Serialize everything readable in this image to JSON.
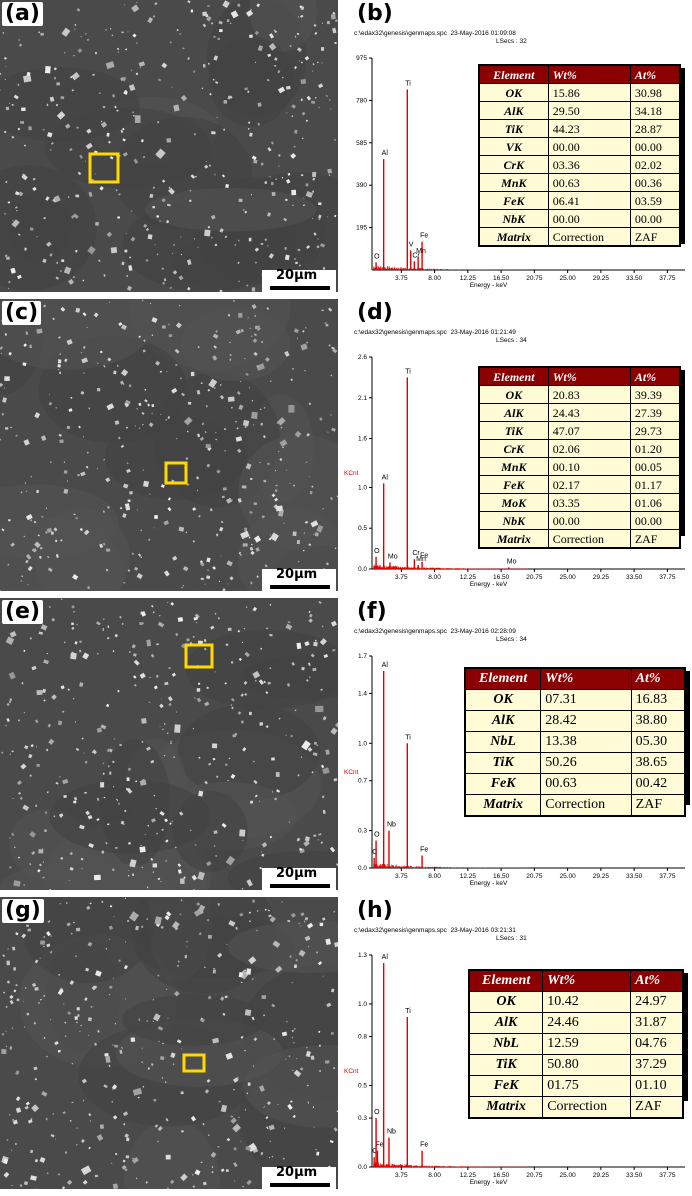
{
  "panels": [
    {
      "sem_label": "(a)",
      "spec_label": "(b)",
      "scale_bar": "20μm",
      "header_line1": "c:\\edax32\\genesis\\genmaps.spc  23-May-2016 01:09:08",
      "header_line2": "LSecs : 32",
      "table": {
        "headers": [
          "Element",
          "Wt%",
          "At%"
        ],
        "rows": [
          [
            "OK",
            "15.86",
            "30.98"
          ],
          [
            "AlK",
            "29.50",
            "34.18"
          ],
          [
            "TiK",
            "44.23",
            "28.87"
          ],
          [
            "VK",
            "00.00",
            "00.00"
          ],
          [
            "CrK",
            "03.36",
            "02.02"
          ],
          [
            "MnK",
            "00.63",
            "00.36"
          ],
          [
            "FeK",
            "06.41",
            "03.59"
          ],
          [
            "NbK",
            "00.00",
            "00.00"
          ],
          [
            "Matrix",
            "Correction",
            "ZAF"
          ]
        ]
      }
    },
    {
      "sem_label": "(c)",
      "spec_label": "(d)",
      "scale_bar": "20μm",
      "header_line1": "c:\\edax32\\genesis\\genmaps.spc  23-May-2016 01:21:49",
      "header_line2": "LSecs : 34",
      "table": {
        "headers": [
          "Element",
          "Wt%",
          "At%"
        ],
        "rows": [
          [
            "OK",
            "20.83",
            "39.39"
          ],
          [
            "AlK",
            "24.43",
            "27.39"
          ],
          [
            "TiK",
            "47.07",
            "29.73"
          ],
          [
            "CrK",
            "02.06",
            "01.20"
          ],
          [
            "MnK",
            "00.10",
            "00.05"
          ],
          [
            "FeK",
            "02.17",
            "01.17"
          ],
          [
            "MoK",
            "03.35",
            "01.06"
          ],
          [
            "NbK",
            "00.00",
            "00.00"
          ],
          [
            "Matrix",
            "Correction",
            "ZAF"
          ]
        ]
      }
    },
    {
      "sem_label": "(e)",
      "spec_label": "(f)",
      "scale_bar": "20μm",
      "header_line1": "c:\\edax32\\genesis\\genmaps.spc  23-May-2016 02:28:09",
      "header_line2": "LSecs : 34",
      "table": {
        "headers": [
          "Element",
          "Wt%",
          "At%"
        ],
        "rows": [
          [
            "OK",
            "07.31",
            "16.83"
          ],
          [
            "AlK",
            "28.42",
            "38.80"
          ],
          [
            "NbL",
            "13.38",
            "05.30"
          ],
          [
            "TiK",
            "50.26",
            "38.65"
          ],
          [
            "FeK",
            "00.63",
            "00.42"
          ],
          [
            "Matrix",
            "Correction",
            "ZAF"
          ]
        ]
      }
    },
    {
      "sem_label": "(g)",
      "spec_label": "(h)",
      "scale_bar": "20μm",
      "header_line1": "c:\\edax32\\genesis\\genmaps.spc  23-May-2016 03:21:31",
      "header_line2": "LSecs : 31",
      "table": {
        "headers": [
          "Element",
          "Wt%",
          "At%"
        ],
        "rows": [
          [
            "OK",
            "10.42",
            "24.97"
          ],
          [
            "AlK",
            "24.46",
            "31.87"
          ],
          [
            "NbL",
            "12.59",
            "04.76"
          ],
          [
            "TiK",
            "50.80",
            "37.29"
          ],
          [
            "FeK",
            "01.75",
            "01.10"
          ],
          [
            "Matrix",
            "Correction",
            "ZAF"
          ]
        ]
      }
    }
  ],
  "chart_data": [
    {
      "type": "bar",
      "title": "",
      "xlabel": "Energy - keV",
      "ylabel": "",
      "xlim": [
        0,
        40.0
      ],
      "ylim": [
        0,
        975
      ],
      "x_ticks": [
        "3.75",
        "8.00",
        "12.25",
        "16.50",
        "20.75",
        "25.00",
        "29.25",
        "33.50",
        "37.75"
      ],
      "y_ticks": [
        "195",
        "390",
        "585",
        "780",
        "975"
      ],
      "peaks": [
        {
          "label": "O",
          "x": 0.52,
          "y": 35
        },
        {
          "label": "Al",
          "x": 1.49,
          "y": 510
        },
        {
          "label": "Ti",
          "x": 4.51,
          "y": 830
        },
        {
          "label": "V",
          "x": 4.95,
          "y": 90
        },
        {
          "label": "Cr",
          "x": 5.41,
          "y": 40
        },
        {
          "label": "Mn",
          "x": 5.9,
          "y": 60
        },
        {
          "label": "Fe",
          "x": 6.4,
          "y": 130
        }
      ]
    },
    {
      "type": "bar",
      "title": "",
      "xlabel": "Energy - keV",
      "ylabel": "KCnt",
      "xlim": [
        0,
        40.0
      ],
      "ylim": [
        0,
        2.6
      ],
      "x_ticks": [
        "3.75",
        "8.00",
        "12.25",
        "16.50",
        "20.75",
        "25.00",
        "29.25",
        "33.50",
        "37.75"
      ],
      "y_ticks": [
        "0.0",
        "0.5",
        "1.0",
        "1.6",
        "2.1",
        "2.6"
      ],
      "peaks": [
        {
          "label": "O",
          "x": 0.52,
          "y": 0.15
        },
        {
          "label": "Al",
          "x": 1.49,
          "y": 1.05
        },
        {
          "label": "Mo",
          "x": 2.29,
          "y": 0.08
        },
        {
          "label": "Ti",
          "x": 4.51,
          "y": 2.35
        },
        {
          "label": "Cr",
          "x": 5.41,
          "y": 0.12
        },
        {
          "label": "Fe",
          "x": 6.4,
          "y": 0.09
        },
        {
          "label": "Mn",
          "x": 5.9,
          "y": 0.05
        },
        {
          "label": "Mo",
          "x": 17.48,
          "y": 0.02
        }
      ]
    },
    {
      "type": "bar",
      "title": "",
      "xlabel": "Energy - keV",
      "ylabel": "KCnt",
      "xlim": [
        0,
        40.0
      ],
      "ylim": [
        0,
        1.7
      ],
      "x_ticks": [
        "3.75",
        "8.00",
        "12.25",
        "16.50",
        "20.75",
        "25.00",
        "29.25",
        "33.50",
        "37.75"
      ],
      "y_ticks": [
        "0.0",
        "0.3",
        "0.7",
        "1.0",
        "1.4",
        "1.7"
      ],
      "peaks": [
        {
          "label": "C",
          "x": 0.28,
          "y": 0.08
        },
        {
          "label": "O",
          "x": 0.52,
          "y": 0.22
        },
        {
          "label": "Al",
          "x": 1.49,
          "y": 1.58
        },
        {
          "label": "Nb",
          "x": 2.17,
          "y": 0.3
        },
        {
          "label": "Ti",
          "x": 4.51,
          "y": 1.0
        },
        {
          "label": "Fe",
          "x": 6.4,
          "y": 0.1
        }
      ]
    },
    {
      "type": "bar",
      "title": "",
      "xlabel": "Energy - keV",
      "ylabel": "KCnt",
      "xlim": [
        0,
        40.0
      ],
      "ylim": [
        0,
        1.3
      ],
      "x_ticks": [
        "3.75",
        "8.00",
        "12.25",
        "16.50",
        "20.75",
        "25.00",
        "29.25",
        "33.50",
        "37.75"
      ],
      "y_ticks": [
        "0.0",
        "0.3",
        "0.5",
        "0.8",
        "1.0",
        "1.3"
      ],
      "peaks": [
        {
          "label": "C",
          "x": 0.28,
          "y": 0.06
        },
        {
          "label": "Fe",
          "x": 0.7,
          "y": 0.1
        },
        {
          "label": "O",
          "x": 0.52,
          "y": 0.3
        },
        {
          "label": "Al",
          "x": 1.49,
          "y": 1.25
        },
        {
          "label": "Nb",
          "x": 2.17,
          "y": 0.18
        },
        {
          "label": "Ti",
          "x": 4.51,
          "y": 0.92
        },
        {
          "label": "Fe",
          "x": 6.4,
          "y": 0.1
        }
      ]
    }
  ]
}
